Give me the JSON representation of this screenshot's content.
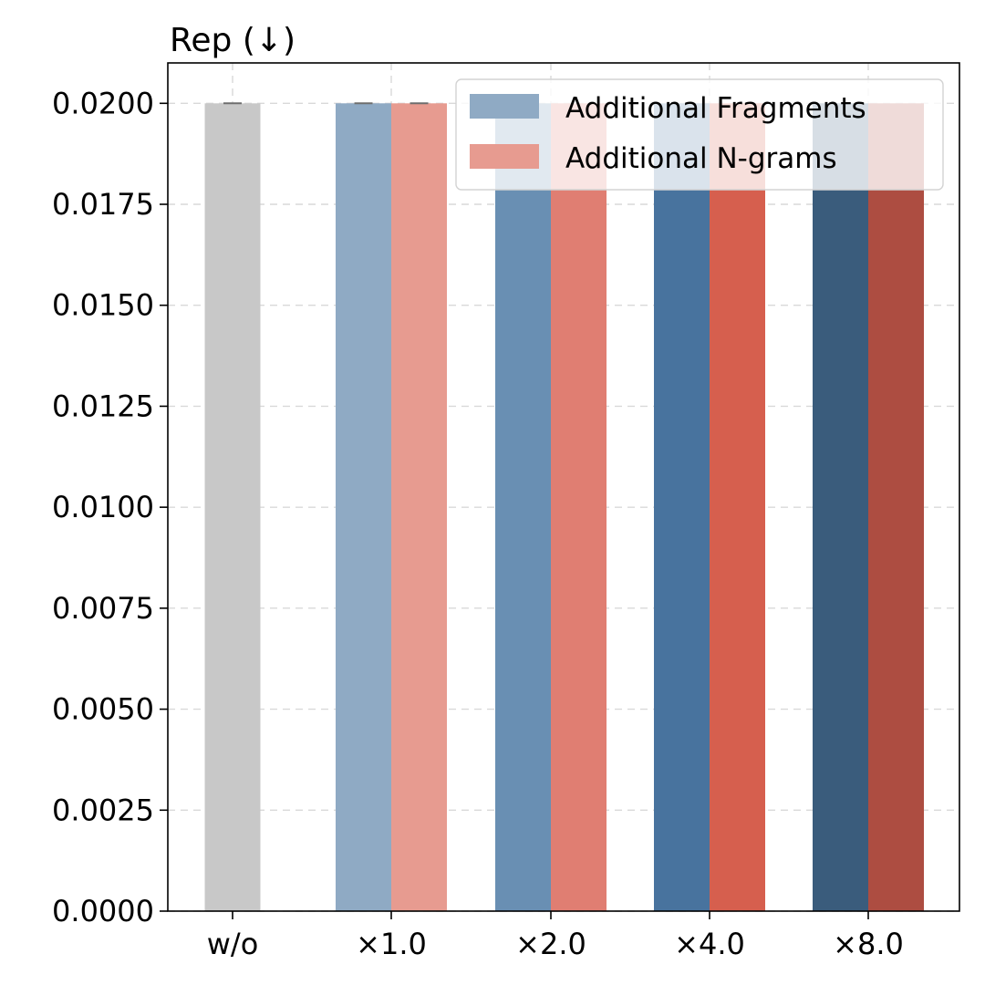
{
  "chart_data": {
    "type": "bar",
    "title": "Rep (↓)",
    "xlabel": "",
    "ylabel": "",
    "categories": [
      "w/o",
      "×1.0",
      "×2.0",
      "×4.0",
      "×8.0"
    ],
    "ylim": [
      0,
      0.021
    ],
    "yticks": [
      "0.0000",
      "0.0025",
      "0.0050",
      "0.0075",
      "0.0100",
      "0.0125",
      "0.0150",
      "0.0175",
      "0.0200"
    ],
    "grid": true,
    "legend_position": "top-right",
    "baseline": {
      "category": "w/o",
      "value": 0.02,
      "color": "#c8c8c8"
    },
    "series": [
      {
        "name": "Additional Fragments",
        "legend_color": "#8faac4",
        "values": [
          null,
          0.02,
          0.02,
          0.02,
          0.02
        ],
        "colors": [
          null,
          "#8faac4",
          "#698fb3",
          "#48739e",
          "#3a5c7c"
        ]
      },
      {
        "name": "Additional N-grams",
        "legend_color": "#e79b90",
        "values": [
          null,
          0.02,
          0.02,
          0.02,
          0.02
        ],
        "colors": [
          null,
          "#e79b90",
          "#e07e72",
          "#d65f4e",
          "#ad4d41"
        ]
      }
    ]
  }
}
